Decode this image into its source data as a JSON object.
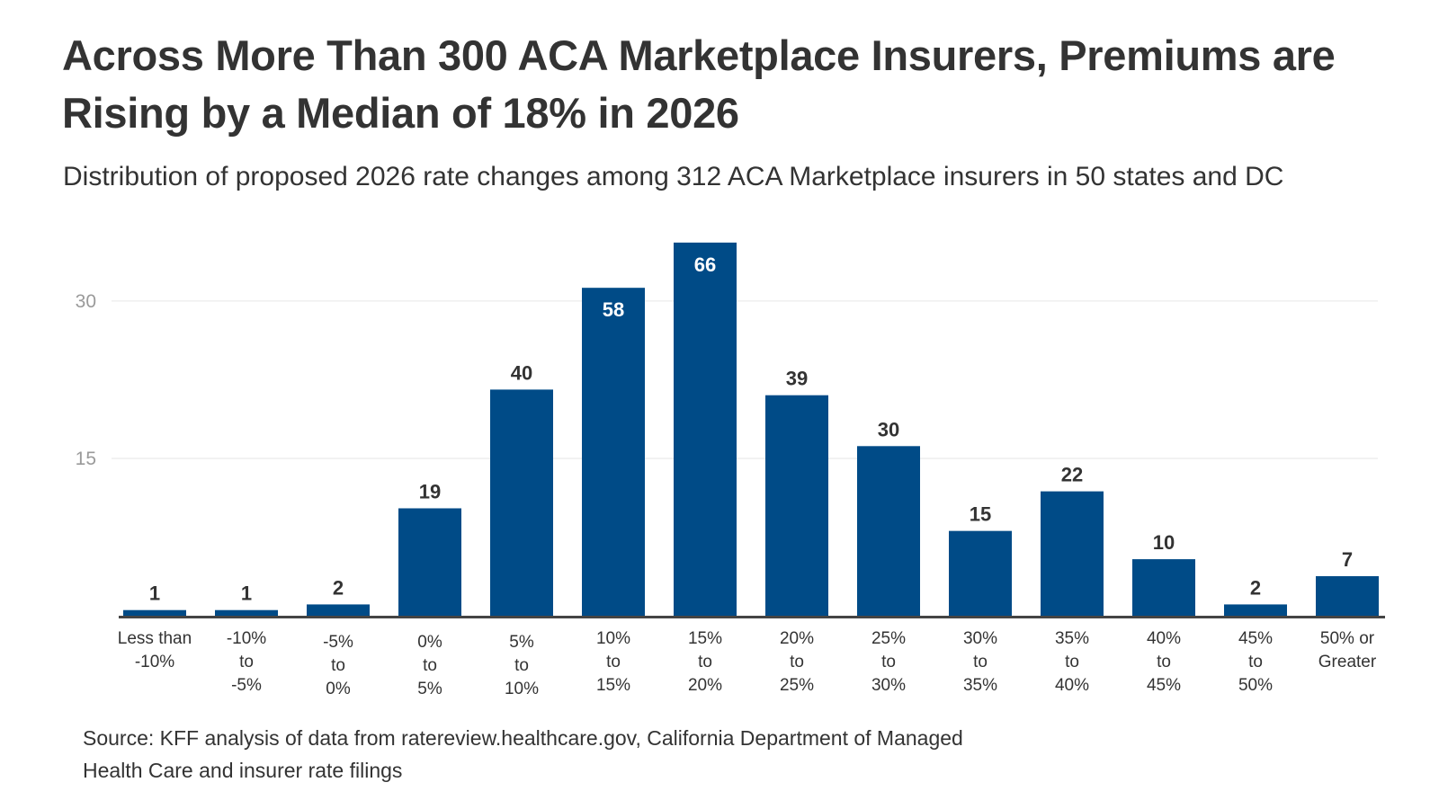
{
  "title": "Across More Than 300 ACA Marketplace Insurers, Premiums are Rising by a Median of 18% in 2026",
  "subtitle": "Distribution of proposed 2026 rate changes among 312 ACA Marketplace insurers in 50 states and DC",
  "source": "Source: KFF analysis of data from ratereview.healthcare.gov, California Department of Managed Health Care and insurer rate filings",
  "colors": {
    "bar": "#004b87",
    "grid": "#e6e6e6",
    "baseline": "#444444",
    "tick": "#9a9a9a"
  },
  "chart_data": {
    "type": "bar",
    "title": "Across More Than 300 ACA Marketplace Insurers, Premiums are Rising by a Median of 18% in 2026",
    "subtitle": "Distribution of proposed 2026 rate changes among 312 ACA Marketplace insurers in 50 states and DC",
    "categories": [
      [
        "Less than",
        "-10%"
      ],
      [
        "-10%",
        "to",
        "-5%"
      ],
      [
        "-5%",
        "to",
        "0%"
      ],
      [
        "0%",
        "to",
        "5%"
      ],
      [
        "5%",
        "to",
        "10%"
      ],
      [
        "10%",
        "to",
        "15%"
      ],
      [
        "15%",
        "to",
        "20%"
      ],
      [
        "20%",
        "to",
        "25%"
      ],
      [
        "25%",
        "to",
        "30%"
      ],
      [
        "30%",
        "to",
        "35%"
      ],
      [
        "35%",
        "to",
        "40%"
      ],
      [
        "40%",
        "to",
        "45%"
      ],
      [
        "45%",
        "to",
        "50%"
      ],
      [
        "50% or",
        "Greater"
      ]
    ],
    "values": [
      1,
      1,
      2,
      19,
      40,
      58,
      66,
      39,
      30,
      15,
      22,
      10,
      2,
      7
    ],
    "yticks": [
      "15",
      "30"
    ],
    "grid": true,
    "legend": "none",
    "xlabel": "",
    "ylabel": ""
  }
}
